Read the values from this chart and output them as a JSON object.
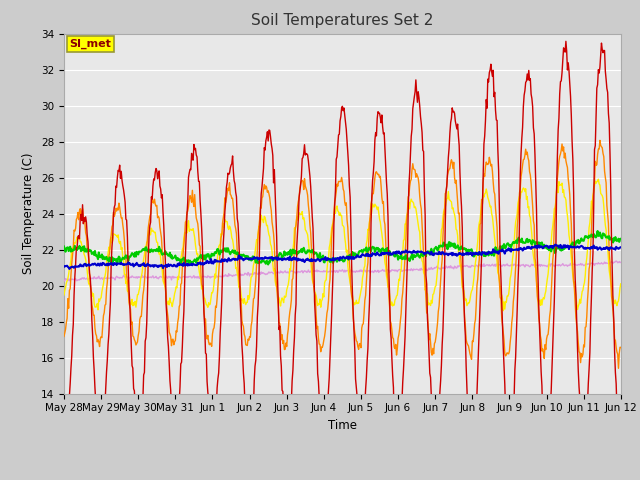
{
  "title": "Soil Temperatures Set 2",
  "xlabel": "Time",
  "ylabel": "Soil Temperature (C)",
  "ylim": [
    14,
    34
  ],
  "yticks": [
    14,
    16,
    18,
    20,
    22,
    24,
    26,
    28,
    30,
    32,
    34
  ],
  "plot_bg_color": "#e8e8e8",
  "fig_bg_color": "#cccccc",
  "annotation_text": "SI_met",
  "annotation_box_color": "#ffff00",
  "annotation_text_color": "#8b0000",
  "annotation_border_color": "#999933",
  "series_colors": {
    "TC2_2Cm": "#cc0000",
    "TC2_4Cm": "#ff8800",
    "TC2_8Cm": "#ffee00",
    "TC2_16Cm": "#00cc00",
    "TC2_32Cm": "#0000cc",
    "TC2_50Cm": "#dd99dd"
  },
  "xtick_labels": [
    "May 28",
    "May 29",
    "May 30",
    "May 31",
    "Jun 1",
    "Jun 2",
    "Jun 3",
    "Jun 4",
    "Jun 5",
    "Jun 6",
    "Jun 7",
    "Jun 8",
    "Jun 9",
    "Jun 10",
    "Jun 11",
    "Jun 12"
  ],
  "xtick_positions": [
    0,
    1,
    2,
    3,
    4,
    5,
    6,
    7,
    8,
    9,
    10,
    11,
    12,
    13,
    14,
    15
  ],
  "grid_color": "#ffffff",
  "lw_thin": 1.0,
  "lw_medium": 1.5,
  "lw_thick": 2.0
}
